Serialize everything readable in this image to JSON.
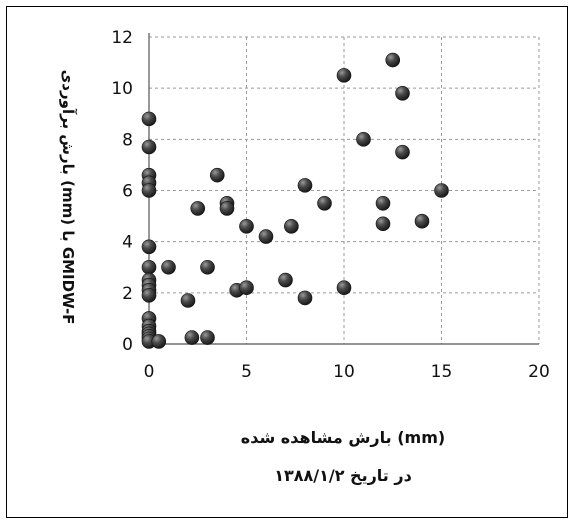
{
  "chart_data": {
    "type": "scatter",
    "xlabel": "بارش مشاهده شده (mm)",
    "subtitle": "در تاریخ ۱۳۸۸/۱/۲",
    "ylabel": "بارش برآوردی (mm) با GMIDW-F",
    "xlim": [
      0,
      20
    ],
    "ylim": [
      0,
      12
    ],
    "xticks": [
      "0",
      "5",
      "10",
      "15",
      "20"
    ],
    "yticks": [
      "0",
      "2",
      "4",
      "6",
      "8",
      "10",
      "12"
    ],
    "grid": true,
    "marker_color": "#3a3a3a",
    "x": [
      0,
      0,
      0,
      0,
      0,
      0,
      0,
      0,
      0,
      0,
      0,
      0,
      0,
      0,
      0,
      0,
      0,
      0,
      0.5,
      1,
      2,
      2.2,
      2.5,
      3,
      3,
      3.5,
      4,
      4,
      4.5,
      5,
      5,
      6,
      7,
      7.3,
      8,
      8,
      9,
      10,
      10,
      11,
      12,
      12,
      12.5,
      13,
      13,
      14,
      15
    ],
    "y": [
      8.8,
      7.7,
      6.6,
      6.3,
      6.0,
      3.8,
      3.0,
      2.5,
      2.3,
      2.1,
      1.9,
      1.0,
      0.7,
      0.5,
      0.4,
      0.3,
      0.2,
      0.1,
      0.1,
      3.0,
      1.7,
      0.25,
      5.3,
      3.0,
      0.25,
      6.6,
      5.5,
      5.3,
      2.1,
      4.6,
      2.2,
      4.2,
      2.5,
      4.6,
      6.2,
      1.8,
      5.5,
      10.5,
      2.2,
      8.0,
      5.5,
      4.7,
      11.1,
      9.8,
      7.5,
      4.8,
      6.0
    ]
  }
}
